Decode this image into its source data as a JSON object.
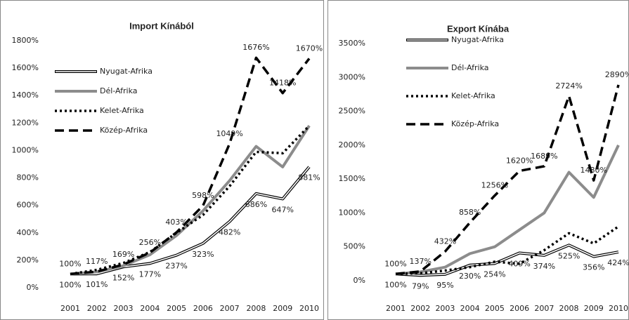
{
  "chart_data": [
    {
      "type": "line",
      "title": "Import Kínából",
      "categories": [
        "2001",
        "2002",
        "2003",
        "2004",
        "2005",
        "2006",
        "2007",
        "2008",
        "2009",
        "2010"
      ],
      "ylim": [
        0,
        1800
      ],
      "yticks": [
        {
          "value": 0,
          "label": "0%"
        },
        {
          "value": 200,
          "label": "200%"
        },
        {
          "value": 400,
          "label": "400%"
        },
        {
          "value": 600,
          "label": "600%"
        },
        {
          "value": 800,
          "label": "800%"
        },
        {
          "value": 1000,
          "label": "1000%"
        },
        {
          "value": 1200,
          "label": "1200%"
        },
        {
          "value": 1400,
          "label": "1400%"
        },
        {
          "value": 1600,
          "label": "1600%"
        },
        {
          "value": 1800,
          "label": "1800%"
        }
      ],
      "series": [
        {
          "name": "Nyugat-Afrika",
          "color": "#000000",
          "style": "double",
          "values": [
            100,
            101,
            152,
            177,
            237,
            323,
            482,
            686,
            647,
            881
          ],
          "value_labels": [
            "100%",
            "101%",
            "152%",
            "177%",
            "237%",
            "323%",
            "482%",
            "686%",
            "647%",
            "881%"
          ]
        },
        {
          "name": "Dél-Afrika",
          "color": "#8c8c8c",
          "style": "solid",
          "values": [
            100,
            115,
            160,
            240,
            380,
            560,
            780,
            1030,
            880,
            1180
          ]
        },
        {
          "name": "Kelet-Afrika",
          "color": "#000000",
          "style": "dotted",
          "values": [
            100,
            130,
            180,
            260,
            400,
            530,
            740,
            990,
            980,
            1180
          ]
        },
        {
          "name": "Közép-Afrika",
          "color": "#000000",
          "style": "dashed",
          "values": [
            100,
            117,
            169,
            256,
            403,
            598,
            1049,
            1676,
            1418,
            1670
          ],
          "value_labels": [
            "100%",
            "117%",
            "169%",
            "256%",
            "403%",
            "598%",
            "1049%",
            "1676%",
            "1418%",
            "1670%"
          ]
        }
      ]
    },
    {
      "type": "line",
      "title": "Export Kínába",
      "categories": [
        "2001",
        "2002",
        "2003",
        "2004",
        "2005",
        "2006",
        "2007",
        "2008",
        "2009",
        "2010"
      ],
      "ylim": [
        0,
        3500
      ],
      "yticks": [
        {
          "value": 0,
          "label": "0%"
        },
        {
          "value": 500,
          "label": "500%"
        },
        {
          "value": 1000,
          "label": "1000%"
        },
        {
          "value": 1500,
          "label": "1500%"
        },
        {
          "value": 2000,
          "label": "2000%"
        },
        {
          "value": 2500,
          "label": "2500%"
        },
        {
          "value": 3000,
          "label": "3000%"
        },
        {
          "value": 3500,
          "label": "3500%"
        }
      ],
      "series": [
        {
          "name": "Nyugat-Afrika",
          "color": "#000000",
          "style": "double",
          "values": [
            100,
            79,
            95,
            230,
            254,
            409,
            374,
            525,
            356,
            424
          ],
          "value_labels": [
            "100%",
            "79%",
            "95%",
            "230%",
            "254%",
            "409%",
            "374%",
            "525%",
            "356%",
            "424%"
          ]
        },
        {
          "name": "Dél-Afrika",
          "color": "#8c8c8c",
          "style": "solid",
          "values": [
            100,
            130,
            200,
            400,
            500,
            750,
            1000,
            1600,
            1230,
            2000
          ]
        },
        {
          "name": "Kelet-Afrika",
          "color": "#000000",
          "style": "dotted",
          "values": [
            100,
            110,
            150,
            200,
            280,
            250,
            450,
            700,
            550,
            800
          ]
        },
        {
          "name": "Közép-Afrika",
          "color": "#000000",
          "style": "dashed",
          "values": [
            100,
            137,
            432,
            858,
            1256,
            1620,
            1689,
            2724,
            1480,
            2890
          ],
          "value_labels": [
            "100%",
            "137%",
            "432%",
            "858%",
            "1256%",
            "1620%",
            "1689%",
            "2724%",
            "1480%",
            "2890%"
          ]
        }
      ]
    }
  ]
}
